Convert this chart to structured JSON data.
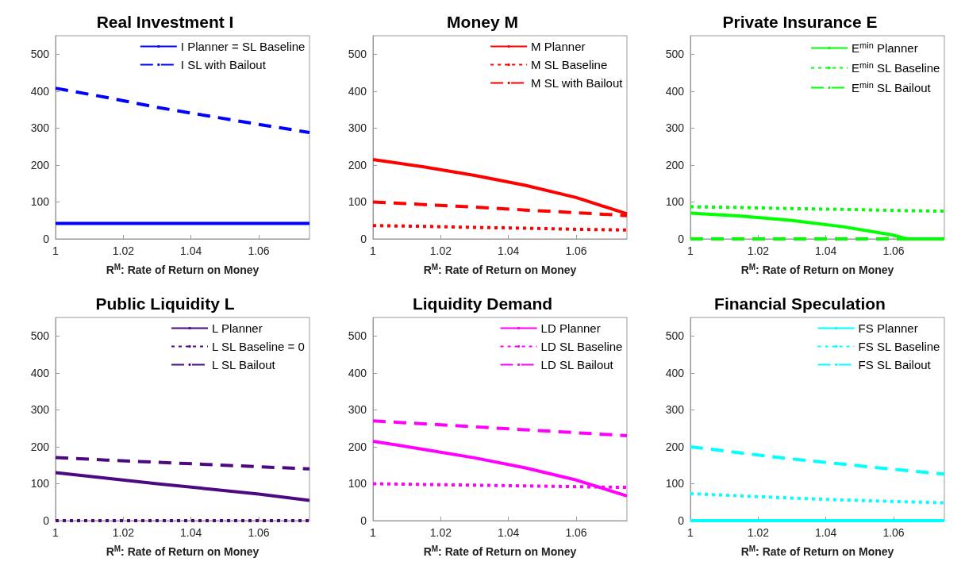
{
  "chart_data": [
    {
      "type": "line",
      "title": "Real Investment I",
      "xlabel": "R$^{M}$: Rate of Return on Money",
      "x": [
        1,
        1.015,
        1.03,
        1.045,
        1.06,
        1.075
      ],
      "xlim": [
        1,
        1.075
      ],
      "xticks": [
        1,
        1.02,
        1.04,
        1.06
      ],
      "ylim": [
        0,
        550
      ],
      "yticks": [
        0,
        100,
        200,
        300,
        400,
        500
      ],
      "grid": false,
      "legend": "top right",
      "series": [
        {
          "name": "I Planner = SL Baseline",
          "color": "#0000ff",
          "line_style": "solid",
          "values": [
            42,
            42,
            42,
            42,
            42,
            42
          ]
        },
        {
          "name": "I SL with Bailout",
          "color": "#0000ff",
          "line_style": "dashed",
          "values": [
            408,
            383,
            356,
            333,
            310,
            288
          ]
        }
      ]
    },
    {
      "type": "line",
      "title": "Money M",
      "xlabel": "R$^{M}$: Rate of Return on Money",
      "x": [
        1,
        1.015,
        1.03,
        1.045,
        1.06,
        1.075
      ],
      "xlim": [
        1,
        1.075
      ],
      "xticks": [
        1,
        1.02,
        1.04,
        1.06
      ],
      "ylim": [
        0,
        550
      ],
      "yticks": [
        0,
        100,
        200,
        300,
        400,
        500
      ],
      "grid": false,
      "legend": "top right",
      "series": [
        {
          "name": "M Planner",
          "color": "#ff0000",
          "line_style": "solid",
          "values": [
            215,
            195,
            172,
            145,
            112,
            68
          ]
        },
        {
          "name": "M SL Baseline",
          "color": "#ff0000",
          "line_style": "dotted",
          "values": [
            36,
            34,
            31,
            29,
            26,
            24
          ]
        },
        {
          "name": "M SL with Bailout",
          "color": "#ff0000",
          "line_style": "dashed",
          "values": [
            100,
            93,
            86,
            78,
            71,
            63
          ]
        }
      ]
    },
    {
      "type": "line",
      "title": "Private Insurance E",
      "xlabel": "R$^{M}$: Rate of Return on Money",
      "x": [
        1,
        1.015,
        1.03,
        1.045,
        1.06,
        1.075
      ],
      "xlim": [
        1,
        1.075
      ],
      "xticks": [
        1,
        1.02,
        1.04,
        1.06
      ],
      "ylim": [
        0,
        550
      ],
      "yticks": [
        0,
        100,
        200,
        300,
        400,
        500
      ],
      "grid": false,
      "legend": "top right",
      "series": [
        {
          "name": "E$^{min}$ Planner",
          "color": "#00ff00",
          "line_style": "solid",
          "x": [
            1,
            1.015,
            1.03,
            1.045,
            1.06,
            1.064,
            1.075
          ],
          "values": [
            70,
            62,
            50,
            33,
            10,
            0,
            0
          ]
        },
        {
          "name": "E$^{min}$ SL Baseline",
          "color": "#00ff00",
          "line_style": "dotted",
          "values": [
            87,
            85,
            82,
            80,
            77,
            75
          ]
        },
        {
          "name": "E$^{min}$ SL Bailout",
          "color": "#00ff00",
          "line_style": "dashed",
          "values": [
            0,
            0,
            0,
            0,
            0,
            0
          ]
        }
      ]
    },
    {
      "type": "line",
      "title": "Public Liquidity L",
      "xlabel": "R$^{M}$: Rate of Return on Money",
      "x": [
        1,
        1.015,
        1.03,
        1.045,
        1.06,
        1.075
      ],
      "xlim": [
        1,
        1.075
      ],
      "xticks": [
        1,
        1.02,
        1.04,
        1.06
      ],
      "ylim": [
        0,
        550
      ],
      "yticks": [
        0,
        100,
        200,
        300,
        400,
        500
      ],
      "grid": false,
      "legend": "top right",
      "series": [
        {
          "name": "L Planner",
          "color": "#4b0a82",
          "line_style": "solid",
          "values": [
            130,
            115,
            100,
            86,
            72,
            55
          ]
        },
        {
          "name": "L SL Baseline = 0",
          "color": "#4b0a82",
          "line_style": "dotted",
          "values": [
            0,
            0,
            0,
            0,
            0,
            0
          ]
        },
        {
          "name": "L SL Bailout",
          "color": "#4b0a82",
          "line_style": "dashed",
          "values": [
            171,
            164,
            158,
            152,
            146,
            140
          ]
        }
      ]
    },
    {
      "type": "line",
      "title": "Liquidity Demand",
      "xlabel": "R$^{M}$: Rate of Return on Money",
      "x": [
        1,
        1.015,
        1.03,
        1.045,
        1.06,
        1.075
      ],
      "xlim": [
        1,
        1.075
      ],
      "xticks": [
        1,
        1.02,
        1.04,
        1.06
      ],
      "ylim": [
        0,
        550
      ],
      "yticks": [
        0,
        100,
        200,
        300,
        400,
        500
      ],
      "grid": false,
      "legend": "top right",
      "series": [
        {
          "name": "LD Planner",
          "color": "#ff00ff",
          "line_style": "solid",
          "values": [
            215,
            193,
            170,
            143,
            110,
            67
          ]
        },
        {
          "name": "LD SL Baseline",
          "color": "#ff00ff",
          "line_style": "dotted",
          "values": [
            100,
            98,
            96,
            94,
            92,
            90
          ]
        },
        {
          "name": "LD SL Bailout",
          "color": "#ff00ff",
          "line_style": "dashed",
          "values": [
            270,
            262,
            254,
            246,
            238,
            230
          ]
        }
      ]
    },
    {
      "type": "line",
      "title": "Financial Speculation",
      "xlabel": "R$^{M}$: Rate of Return on Money",
      "x": [
        1,
        1.015,
        1.03,
        1.045,
        1.06,
        1.075
      ],
      "xlim": [
        1,
        1.075
      ],
      "xticks": [
        1,
        1.02,
        1.04,
        1.06
      ],
      "ylim": [
        0,
        550
      ],
      "yticks": [
        0,
        100,
        200,
        300,
        400,
        500
      ],
      "grid": false,
      "legend": "top right",
      "series": [
        {
          "name": "FS Planner",
          "color": "#00ffff",
          "line_style": "solid",
          "values": [
            0,
            0,
            0,
            0,
            0,
            0
          ]
        },
        {
          "name": "FS SL Baseline",
          "color": "#00ffff",
          "line_style": "dotted",
          "values": [
            73,
            67,
            61,
            56,
            52,
            48
          ]
        },
        {
          "name": "FS SL Bailout",
          "color": "#00ffff",
          "line_style": "dashed",
          "values": [
            200,
            183,
            167,
            153,
            139,
            126
          ]
        }
      ]
    }
  ]
}
